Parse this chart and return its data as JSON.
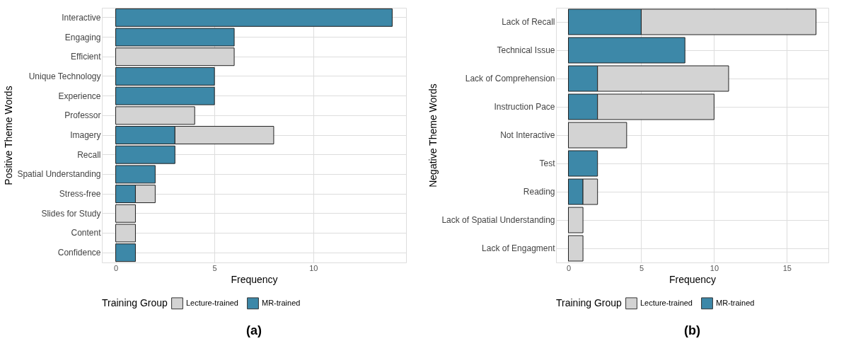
{
  "chart_data": [
    {
      "type": "bar",
      "orientation": "horizontal",
      "stacked": true,
      "xlabel": "Frequency",
      "ylabel": "Positive Theme Words",
      "legend_title": "Training Group",
      "legend": "bottom",
      "grid": true,
      "categories": [
        "Interactive",
        "Engaging",
        "Efficient",
        "Unique Technology",
        "Experience",
        "Professor",
        "Imagery",
        "Recall",
        "Spatial Understanding",
        "Stress-free",
        "Slides for Study",
        "Content",
        "Confidence"
      ],
      "series": [
        {
          "name": "MR-trained",
          "color": "#3d88a8",
          "values": [
            14,
            6,
            null,
            5,
            5,
            null,
            3,
            3,
            2,
            1,
            null,
            null,
            1
          ]
        },
        {
          "name": "Lecture-trained",
          "color": "#d3d3d3",
          "values": [
            null,
            null,
            6,
            null,
            null,
            4,
            5,
            null,
            null,
            1,
            1,
            1,
            null
          ]
        }
      ],
      "xlim": [
        -0.7,
        14.7
      ],
      "xticks": [
        0,
        5,
        10
      ],
      "annotations": [
        "(a)"
      ]
    },
    {
      "type": "bar",
      "orientation": "horizontal",
      "stacked": true,
      "xlabel": "Frequency",
      "ylabel": "Negative Theme Words",
      "legend_title": "Training Group",
      "legend": "bottom",
      "grid": true,
      "categories": [
        "Lack of Recall",
        "Technical Issue",
        "Lack of Comprehension",
        "Instruction Pace",
        "Not Interactive",
        "Test",
        "Reading",
        "Lack of Spatial Understanding",
        "Lack of Engagment"
      ],
      "series": [
        {
          "name": "MR-trained",
          "color": "#3d88a8",
          "values": [
            5,
            8,
            2,
            2,
            null,
            2,
            1,
            null,
            null
          ]
        },
        {
          "name": "Lecture-trained",
          "color": "#d3d3d3",
          "values": [
            12,
            null,
            9,
            8,
            4,
            null,
            1,
            1,
            1
          ]
        }
      ],
      "xlim": [
        -0.85,
        17.85
      ],
      "xticks": [
        0,
        5,
        10,
        15
      ],
      "annotations": [
        "(b)"
      ]
    }
  ]
}
